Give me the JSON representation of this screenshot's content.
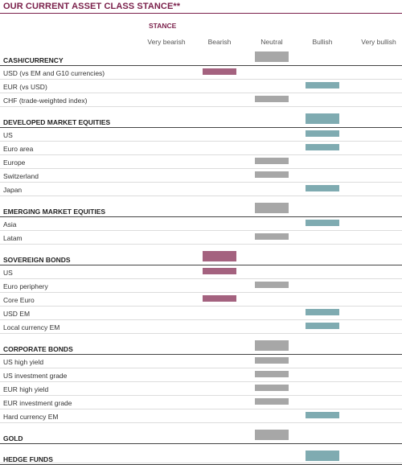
{
  "title": "OUR CURRENT ASSET CLASS STANCE**",
  "stance_label": "STANCE",
  "columns": [
    "Very bearish",
    "Bearish",
    "Neutral",
    "Bullish",
    "Very bullish"
  ],
  "colors": {
    "bearish": "#a4627f",
    "neutral": "#a7a7a7",
    "bullish": "#7fabb1",
    "title": "#7a1f4a"
  },
  "rows": [
    {
      "label": "CASH/CURRENCY",
      "category": true,
      "stance": "Neutral"
    },
    {
      "label": "USD (vs EM and G10 currencies)",
      "category": false,
      "stance": "Bearish"
    },
    {
      "label": "EUR (vs USD)",
      "category": false,
      "stance": "Bullish"
    },
    {
      "label": "CHF (trade-weighted index)",
      "category": false,
      "stance": "Neutral"
    },
    {
      "label": "DEVELOPED MARKET EQUITIES",
      "category": true,
      "stance": "Bullish"
    },
    {
      "label": "US",
      "category": false,
      "stance": "Bullish"
    },
    {
      "label": "Euro area",
      "category": false,
      "stance": "Bullish"
    },
    {
      "label": "Europe",
      "category": false,
      "stance": "Neutral"
    },
    {
      "label": "Switzerland",
      "category": false,
      "stance": "Neutral"
    },
    {
      "label": "Japan",
      "category": false,
      "stance": "Bullish"
    },
    {
      "label": "EMERGING MARKET EQUITIES",
      "category": true,
      "stance": "Neutral"
    },
    {
      "label": "Asia",
      "category": false,
      "stance": "Bullish"
    },
    {
      "label": "Latam",
      "category": false,
      "stance": "Neutral"
    },
    {
      "label": "SOVEREIGN BONDS",
      "category": true,
      "stance": "Bearish"
    },
    {
      "label": "US",
      "category": false,
      "stance": "Bearish"
    },
    {
      "label": "Euro periphery",
      "category": false,
      "stance": "Neutral"
    },
    {
      "label": "Core Euro",
      "category": false,
      "stance": "Bearish"
    },
    {
      "label": "USD EM",
      "category": false,
      "stance": "Bullish"
    },
    {
      "label": "Local currency EM",
      "category": false,
      "stance": "Bullish"
    },
    {
      "label": "CORPORATE BONDS",
      "category": true,
      "stance": "Neutral"
    },
    {
      "label": "US high yield",
      "category": false,
      "stance": "Neutral"
    },
    {
      "label": "US investment grade",
      "category": false,
      "stance": "Neutral"
    },
    {
      "label": "EUR high yield",
      "category": false,
      "stance": "Neutral"
    },
    {
      "label": "EUR investment grade",
      "category": false,
      "stance": "Neutral"
    },
    {
      "label": "Hard currency EM",
      "category": false,
      "stance": "Bullish"
    },
    {
      "label": "GOLD",
      "category": true,
      "stance": "Neutral"
    },
    {
      "label": "HEDGE FUNDS",
      "category": true,
      "stance": "Bullish"
    }
  ]
}
